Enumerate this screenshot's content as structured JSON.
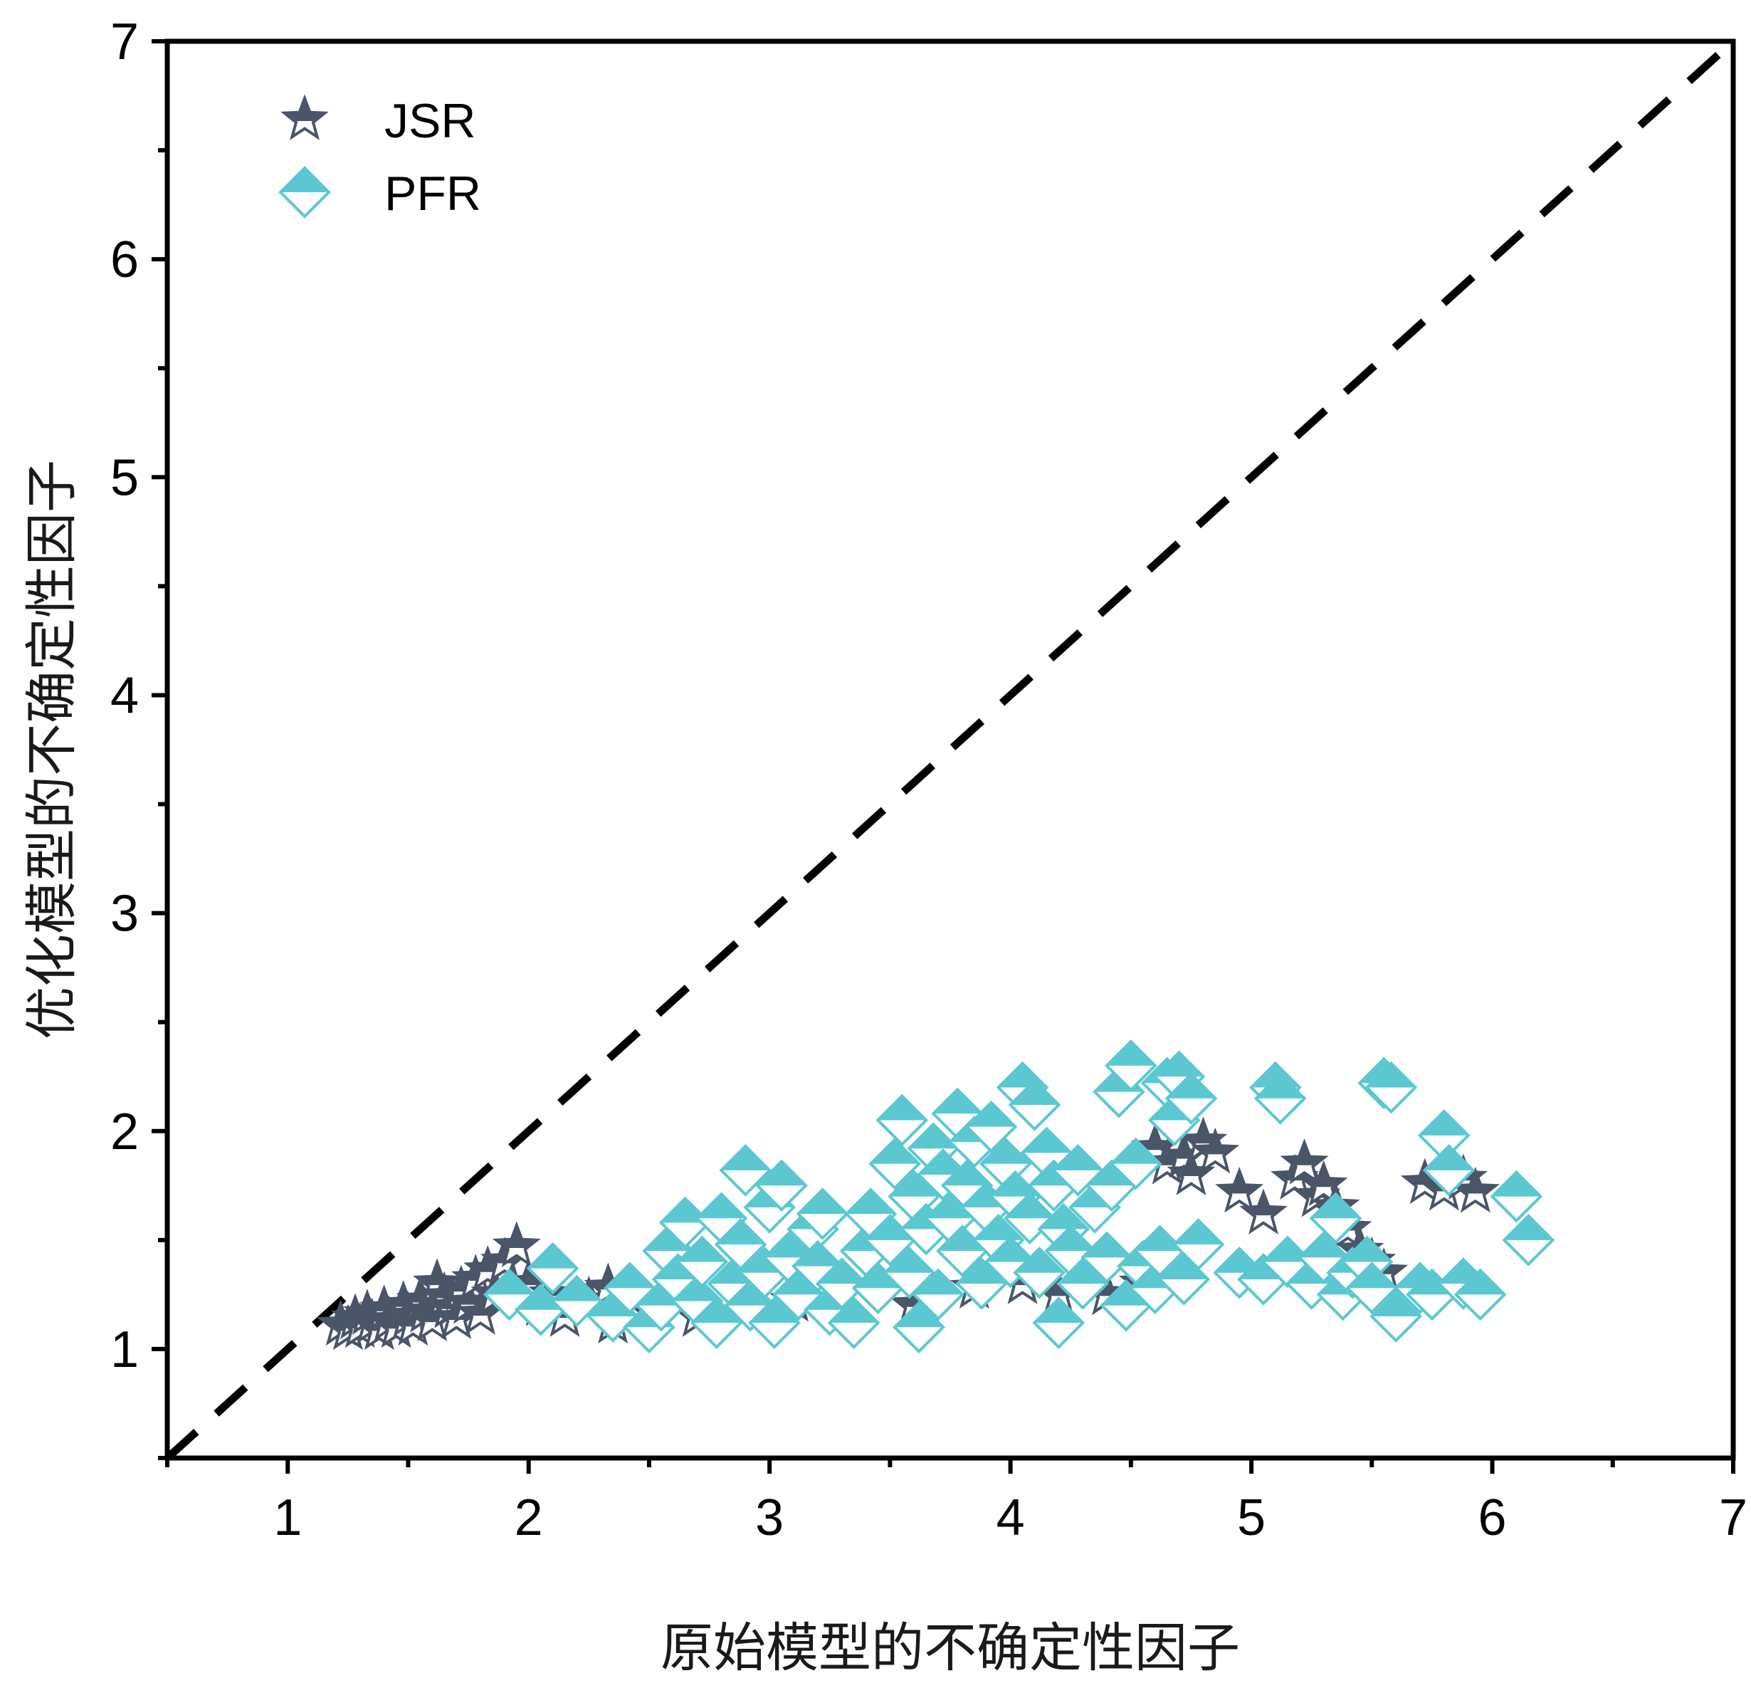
{
  "chart_data": {
    "type": "scatter",
    "xlabel": "原始模型的不确定性因子",
    "ylabel": "优化模型的不确定性因子",
    "xlim": [
      0.5,
      7
    ],
    "ylim": [
      0.5,
      7
    ],
    "x_ticks": [
      "1",
      "2",
      "3",
      "4",
      "5",
      "6",
      "7"
    ],
    "y_ticks": [
      "1",
      "2",
      "3",
      "4",
      "5",
      "6",
      "7"
    ],
    "legend_position": "top-left",
    "grid": false,
    "reference_line": {
      "style": "dashed",
      "color": "#000000",
      "from": [
        0.5,
        0.5
      ],
      "to": [
        7,
        7
      ]
    },
    "series": [
      {
        "name": "JSR",
        "marker": "star",
        "color": "#4a5568",
        "points": [
          [
            1.22,
            1.11
          ],
          [
            1.25,
            1.09
          ],
          [
            1.28,
            1.14
          ],
          [
            1.3,
            1.1
          ],
          [
            1.33,
            1.16
          ],
          [
            1.35,
            1.12
          ],
          [
            1.38,
            1.09
          ],
          [
            1.4,
            1.18
          ],
          [
            1.42,
            1.13
          ],
          [
            1.45,
            1.1
          ],
          [
            1.48,
            1.2
          ],
          [
            1.5,
            1.15
          ],
          [
            1.52,
            1.11
          ],
          [
            1.55,
            1.22
          ],
          [
            1.57,
            1.17
          ],
          [
            1.6,
            1.13
          ],
          [
            1.62,
            1.3
          ],
          [
            1.65,
            1.24
          ],
          [
            1.67,
            1.19
          ],
          [
            1.7,
            1.14
          ],
          [
            1.72,
            1.27
          ],
          [
            1.75,
            1.21
          ],
          [
            1.78,
            1.32
          ],
          [
            1.8,
            1.16
          ],
          [
            1.83,
            1.36
          ],
          [
            1.86,
            1.25
          ],
          [
            1.9,
            1.4
          ],
          [
            1.93,
            1.28
          ],
          [
            1.95,
            1.47
          ],
          [
            2.0,
            1.3
          ],
          [
            2.05,
            1.2
          ],
          [
            2.1,
            1.25
          ],
          [
            2.15,
            1.15
          ],
          [
            2.25,
            1.22
          ],
          [
            2.33,
            1.28
          ],
          [
            2.35,
            1.12
          ],
          [
            2.5,
            1.18
          ],
          [
            2.7,
            1.15
          ],
          [
            2.9,
            1.2
          ],
          [
            3.1,
            1.22
          ],
          [
            3.3,
            1.25
          ],
          [
            3.6,
            1.2
          ],
          [
            3.85,
            1.28
          ],
          [
            4.05,
            1.3
          ],
          [
            4.2,
            1.25
          ],
          [
            4.6,
            1.92
          ],
          [
            4.65,
            1.85
          ],
          [
            4.72,
            1.88
          ],
          [
            4.8,
            1.95
          ],
          [
            4.75,
            1.8
          ],
          [
            4.85,
            1.9
          ],
          [
            4.95,
            1.72
          ],
          [
            5.05,
            1.62
          ],
          [
            5.18,
            1.78
          ],
          [
            5.22,
            1.85
          ],
          [
            5.27,
            1.7
          ],
          [
            5.3,
            1.75
          ],
          [
            5.35,
            1.65
          ],
          [
            5.4,
            1.55
          ],
          [
            5.45,
            1.45
          ],
          [
            5.5,
            1.4
          ],
          [
            5.55,
            1.35
          ],
          [
            5.72,
            1.76
          ],
          [
            5.8,
            1.73
          ],
          [
            5.88,
            1.78
          ],
          [
            5.93,
            1.72
          ],
          [
            4.55,
            1.3
          ],
          [
            4.4,
            1.25
          ],
          [
            4.3,
            1.35
          ]
        ]
      },
      {
        "name": "PFR",
        "marker": "diamond-half",
        "color": "#5bc8d1",
        "points": [
          [
            1.92,
            1.25
          ],
          [
            2.05,
            1.18
          ],
          [
            2.1,
            1.37
          ],
          [
            2.2,
            1.22
          ],
          [
            2.35,
            1.15
          ],
          [
            2.42,
            1.28
          ],
          [
            2.5,
            1.1
          ],
          [
            2.55,
            1.2
          ],
          [
            2.58,
            1.45
          ],
          [
            2.62,
            1.32
          ],
          [
            2.65,
            1.58
          ],
          [
            2.7,
            1.22
          ],
          [
            2.72,
            1.4
          ],
          [
            2.78,
            1.12
          ],
          [
            2.8,
            1.6
          ],
          [
            2.85,
            1.3
          ],
          [
            2.88,
            1.48
          ],
          [
            2.9,
            1.82
          ],
          [
            2.92,
            1.2
          ],
          [
            2.98,
            1.35
          ],
          [
            3.0,
            1.65
          ],
          [
            3.02,
            1.12
          ],
          [
            3.05,
            1.75
          ],
          [
            3.08,
            1.42
          ],
          [
            3.12,
            1.25
          ],
          [
            3.18,
            1.55
          ],
          [
            3.2,
            1.38
          ],
          [
            3.22,
            1.62
          ],
          [
            3.25,
            1.18
          ],
          [
            3.3,
            1.3
          ],
          [
            3.35,
            1.12
          ],
          [
            3.4,
            1.45
          ],
          [
            3.42,
            1.62
          ],
          [
            3.45,
            1.28
          ],
          [
            3.5,
            1.5
          ],
          [
            3.52,
            1.85
          ],
          [
            3.55,
            2.05
          ],
          [
            3.58,
            1.35
          ],
          [
            3.6,
            1.7
          ],
          [
            3.62,
            1.1
          ],
          [
            3.65,
            1.55
          ],
          [
            3.68,
            1.92
          ],
          [
            3.7,
            1.25
          ],
          [
            3.72,
            1.8
          ],
          [
            3.75,
            1.6
          ],
          [
            3.78,
            2.08
          ],
          [
            3.8,
            1.45
          ],
          [
            3.82,
            1.75
          ],
          [
            3.85,
            1.95
          ],
          [
            3.88,
            1.3
          ],
          [
            3.9,
            1.65
          ],
          [
            3.92,
            2.02
          ],
          [
            3.95,
            1.5
          ],
          [
            3.98,
            1.85
          ],
          [
            4.0,
            1.4
          ],
          [
            4.02,
            1.7
          ],
          [
            4.05,
            2.2
          ],
          [
            4.08,
            1.6
          ],
          [
            4.1,
            2.12
          ],
          [
            4.12,
            1.35
          ],
          [
            4.15,
            1.9
          ],
          [
            4.18,
            1.75
          ],
          [
            4.2,
            1.12
          ],
          [
            4.22,
            1.55
          ],
          [
            4.25,
            1.45
          ],
          [
            4.28,
            1.82
          ],
          [
            4.3,
            1.3
          ],
          [
            4.35,
            1.65
          ],
          [
            4.4,
            1.42
          ],
          [
            4.42,
            1.75
          ],
          [
            4.45,
            2.18
          ],
          [
            4.48,
            1.2
          ],
          [
            4.5,
            2.3
          ],
          [
            4.52,
            1.85
          ],
          [
            4.55,
            1.38
          ],
          [
            4.6,
            1.28
          ],
          [
            4.62,
            1.45
          ],
          [
            4.65,
            2.22
          ],
          [
            4.68,
            2.05
          ],
          [
            4.7,
            2.25
          ],
          [
            4.72,
            1.32
          ],
          [
            4.75,
            2.15
          ],
          [
            4.78,
            1.48
          ],
          [
            4.95,
            1.35
          ],
          [
            5.05,
            1.32
          ],
          [
            5.1,
            2.2
          ],
          [
            5.12,
            2.15
          ],
          [
            5.15,
            1.4
          ],
          [
            5.25,
            1.3
          ],
          [
            5.3,
            1.42
          ],
          [
            5.35,
            1.6
          ],
          [
            5.38,
            1.25
          ],
          [
            5.42,
            1.35
          ],
          [
            5.48,
            1.4
          ],
          [
            5.5,
            1.28
          ],
          [
            5.55,
            2.22
          ],
          [
            5.58,
            2.2
          ],
          [
            5.6,
            1.15
          ],
          [
            5.7,
            1.28
          ],
          [
            5.75,
            1.25
          ],
          [
            5.8,
            1.98
          ],
          [
            5.82,
            1.82
          ],
          [
            5.88,
            1.3
          ],
          [
            5.95,
            1.25
          ],
          [
            6.1,
            1.7
          ],
          [
            6.15,
            1.5
          ]
        ]
      }
    ]
  }
}
